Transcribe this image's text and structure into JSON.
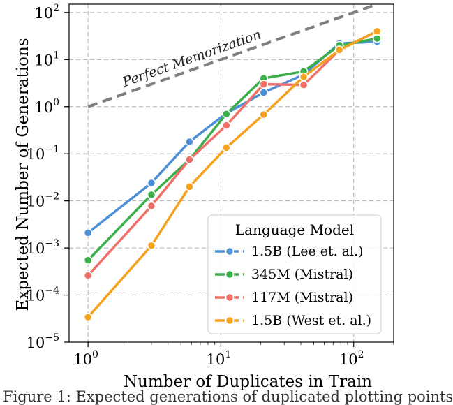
{
  "chart_data": {
    "type": "line",
    "xscale": "log",
    "yscale": "log",
    "xlim": [
      0.72,
      200
    ],
    "ylim": [
      1e-05,
      150
    ],
    "xticks": [
      1,
      10,
      100
    ],
    "yticks": [
      1e-05,
      0.0001,
      0.001,
      0.01,
      0.1,
      1,
      10,
      100
    ],
    "xlabel": "Number of Duplicates in Train",
    "ylabel": "Expected Number of Generations",
    "grid": true,
    "legend": {
      "title": "Language Model",
      "placement": "bottom-right"
    },
    "reference_line": {
      "label": "Perfect Memorization",
      "x": [
        1,
        150
      ],
      "y": [
        1,
        150
      ],
      "color": "#7f7f7f"
    },
    "series": [
      {
        "name": "1.5B (Lee et. al.)",
        "color": "#4c8fd6",
        "x": [
          1,
          3,
          5.8,
          11,
          21,
          42,
          78,
          150
        ],
        "y": [
          0.0021,
          0.024,
          0.18,
          0.72,
          2.0,
          4.8,
          22,
          24
        ]
      },
      {
        "name": "345M (Mistral)",
        "color": "#3bb04a",
        "x": [
          1,
          3,
          5.8,
          11,
          21,
          42,
          78,
          150
        ],
        "y": [
          0.00055,
          0.0135,
          0.075,
          0.7,
          4.0,
          5.6,
          20,
          28
        ]
      },
      {
        "name": "117M (Mistral)",
        "color": "#f07068",
        "x": [
          1,
          3,
          5.8,
          11,
          21,
          42,
          78,
          150
        ],
        "y": [
          0.00026,
          0.0078,
          0.075,
          0.4,
          3.0,
          2.9,
          16,
          40
        ]
      },
      {
        "name": "1.5B (West et. al.)",
        "color": "#f5a21e",
        "x": [
          1,
          3,
          5.8,
          11,
          21,
          42,
          78,
          150
        ],
        "y": [
          3.4e-05,
          0.00112,
          0.02,
          0.135,
          0.68,
          4.3,
          16,
          40
        ]
      }
    ]
  },
  "caption": "Figure 1: Expected generations of duplicated plotting points"
}
